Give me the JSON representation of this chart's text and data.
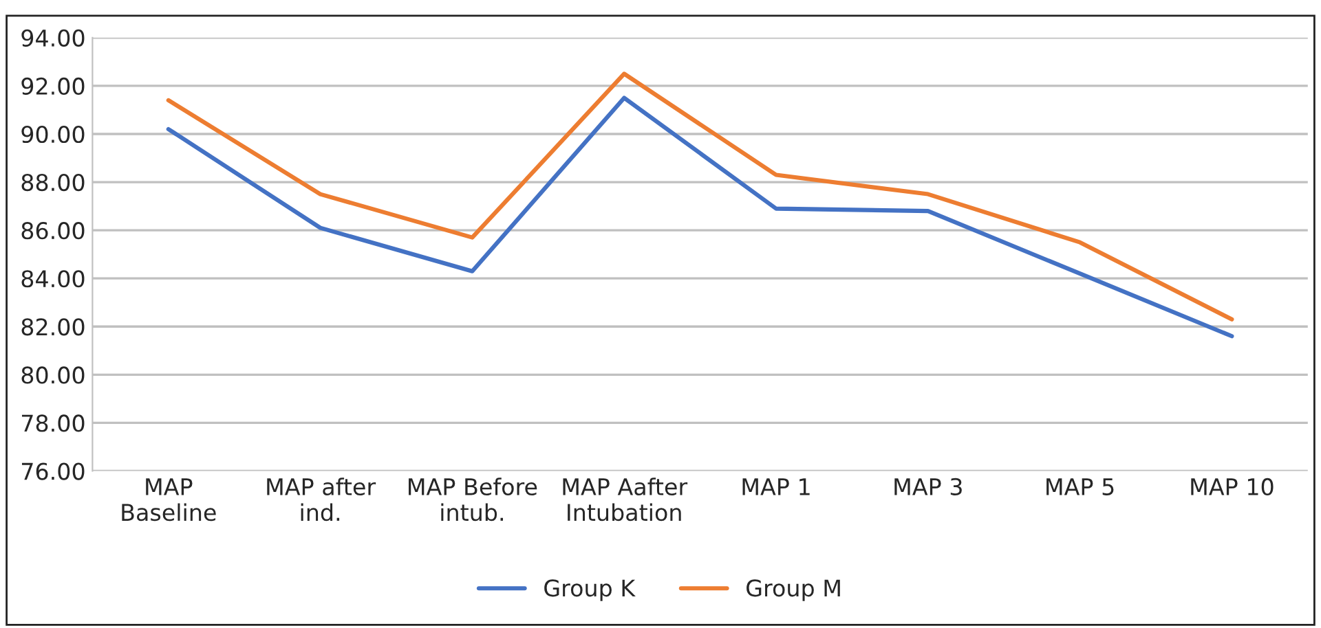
{
  "chart_data": {
    "type": "line",
    "categories": [
      "MAP\nBaseline",
      "MAP after\nind.",
      "MAP Before\nintub.",
      "MAP Aafter\nIntubation",
      "MAP 1",
      "MAP 3",
      "MAP 5",
      "MAP 10"
    ],
    "series": [
      {
        "name": "Group K",
        "color": "#4472c4",
        "values": [
          90.2,
          86.1,
          84.3,
          91.5,
          86.9,
          86.8,
          84.2,
          81.6
        ]
      },
      {
        "name": "Group M",
        "color": "#ed7d31",
        "values": [
          91.4,
          87.5,
          85.7,
          92.5,
          88.3,
          87.5,
          85.5,
          82.3
        ]
      }
    ],
    "ylim": [
      76,
      94
    ],
    "yticks": [
      {
        "value": 76,
        "label": "76.00"
      },
      {
        "value": 78,
        "label": "78.00"
      },
      {
        "value": 80,
        "label": "80.00"
      },
      {
        "value": 82,
        "label": "82.00"
      },
      {
        "value": 84,
        "label": "84.00"
      },
      {
        "value": 86,
        "label": "86.00"
      },
      {
        "value": 88,
        "label": "88.00"
      },
      {
        "value": 90,
        "label": "90.00"
      },
      {
        "value": 92,
        "label": "92.00"
      },
      {
        "value": 94,
        "label": "94.00"
      }
    ],
    "grid": "y",
    "legend": "bottom",
    "marker": "none",
    "line_style": "solid"
  }
}
